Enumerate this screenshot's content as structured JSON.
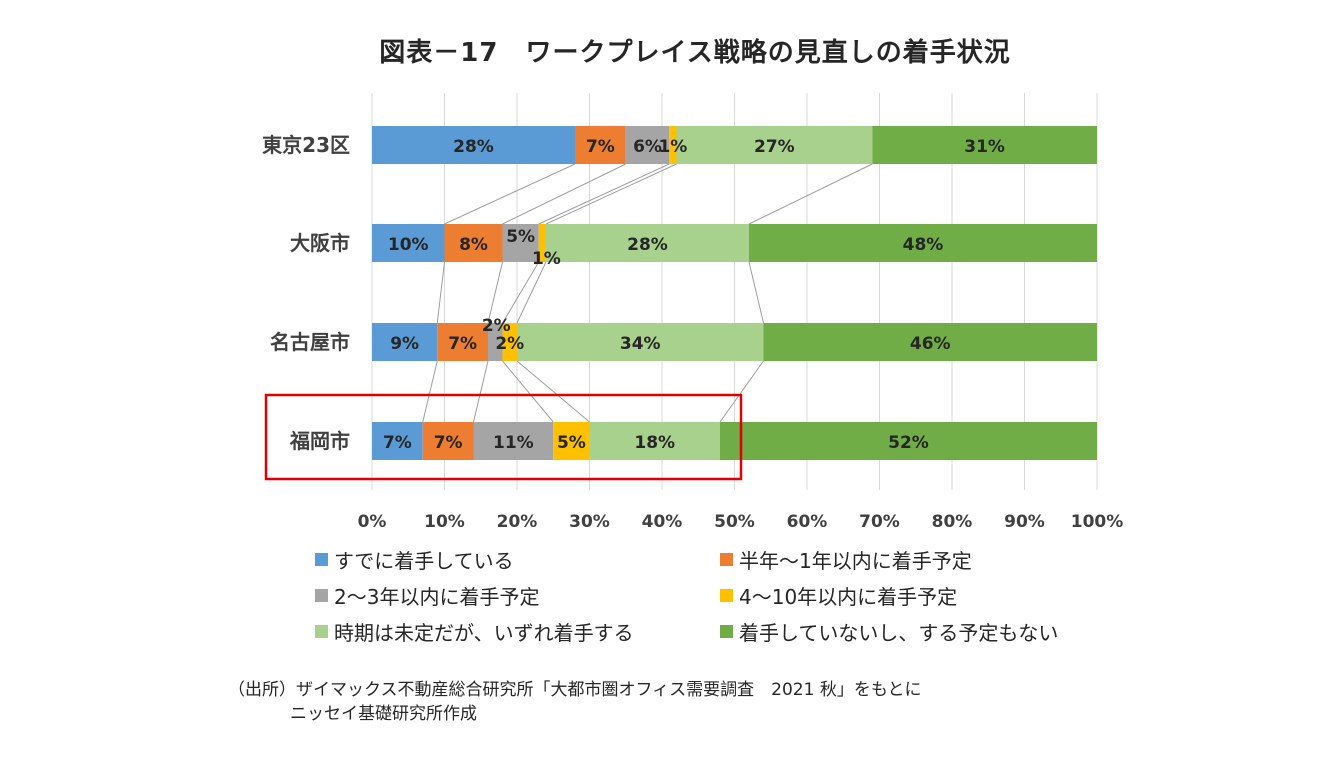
{
  "chart_data": {
    "type": "bar",
    "orientation": "horizontal-stacked-100",
    "title": "図表－17　ワークプレイス戦略の見直しの着手状況",
    "categories": [
      "東京23区",
      "大阪市",
      "名古屋市",
      "福岡市"
    ],
    "series": [
      {
        "name": "すでに着手している",
        "color": "#5B9BD5",
        "values": [
          28,
          10,
          9,
          7
        ]
      },
      {
        "name": "半年～1年以内に着手予定",
        "color": "#ED7D31",
        "values": [
          7,
          8,
          7,
          7
        ]
      },
      {
        "name": "2～3年以内に着手予定",
        "color": "#A5A5A5",
        "values": [
          6,
          5,
          2,
          11
        ]
      },
      {
        "name": "4～10年以内に着手予定",
        "color": "#FFC000",
        "values": [
          1,
          1,
          2,
          5
        ]
      },
      {
        "name": "時期は未定だが、いずれ着手する",
        "color": "#A9D18E",
        "values": [
          27,
          28,
          34,
          18
        ]
      },
      {
        "name": "着手していないし、する予定もない",
        "color": "#70AD47",
        "values": [
          31,
          48,
          46,
          52
        ]
      }
    ],
    "data_labels": [
      [
        "28%",
        "7%",
        "6%",
        "1%",
        "27%",
        "31%"
      ],
      [
        "10%",
        "8%",
        "5%",
        "1%",
        "28%",
        "48%"
      ],
      [
        "9%",
        "7%",
        "2%",
        "2%",
        "34%",
        "46%"
      ],
      [
        "7%",
        "7%",
        "11%",
        "5%",
        "18%",
        "52%"
      ]
    ],
    "x_ticks": [
      "0%",
      "10%",
      "20%",
      "30%",
      "40%",
      "50%",
      "60%",
      "70%",
      "80%",
      "90%",
      "100%"
    ],
    "xlim": [
      0,
      100
    ],
    "grid": true,
    "series_lines": true,
    "highlighted_category": "福岡市",
    "highlight_color": "#E00000",
    "legend_position": "bottom"
  },
  "source": {
    "line1": "（出所）ザイマックス不動産総合研究所「大都市圏オフィス需要調査　2021 秋」をもとに",
    "line2": "ニッセイ基礎研究所作成"
  }
}
